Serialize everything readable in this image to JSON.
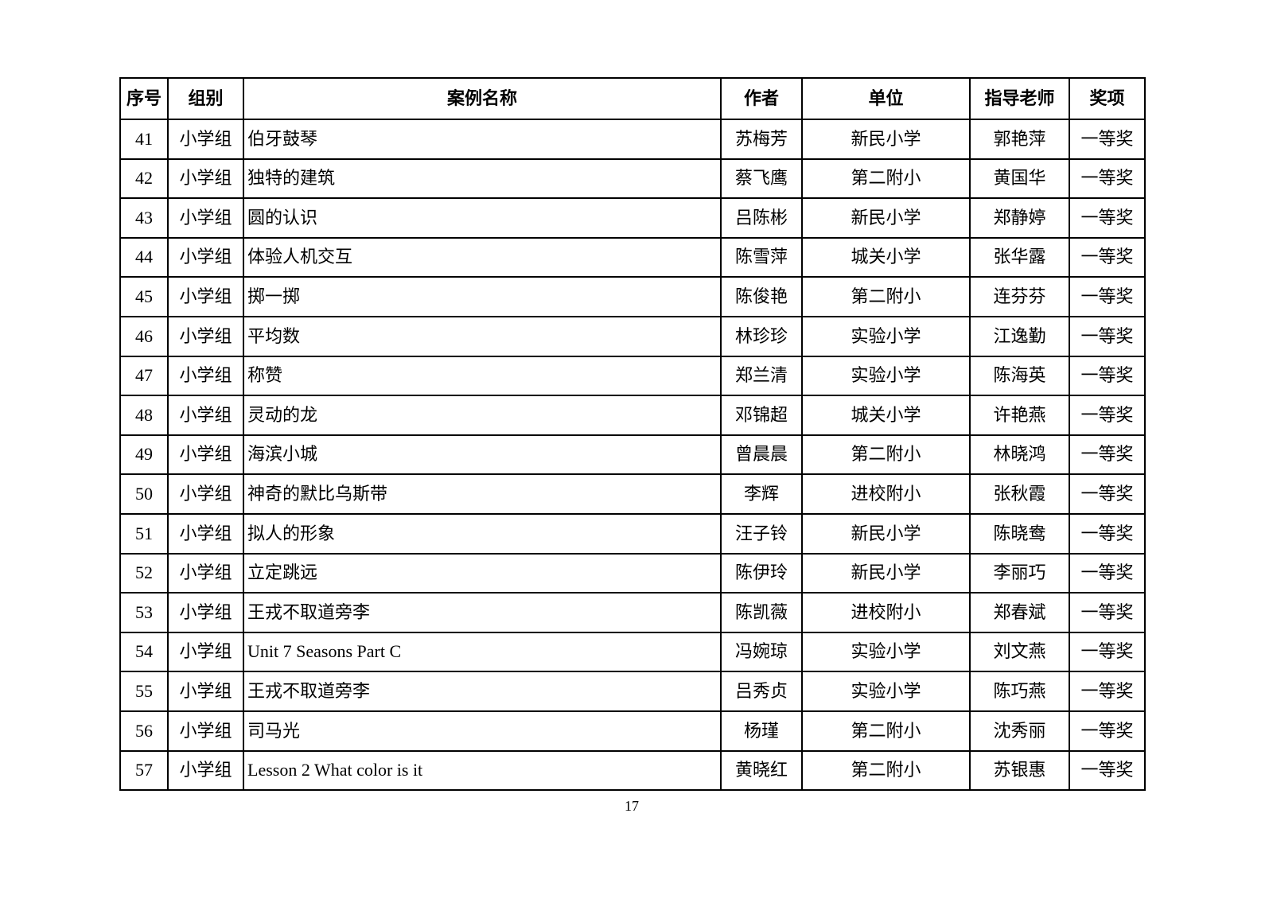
{
  "page": {
    "number": "17"
  },
  "table": {
    "headers": [
      "序号",
      "组别",
      "案例名称",
      "作者",
      "单位",
      "指导老师",
      "奖项"
    ],
    "column_keys": [
      "index",
      "group",
      "case-name",
      "author",
      "unit",
      "teacher",
      "award"
    ],
    "rows": [
      [
        "41",
        "小学组",
        "伯牙鼓琴",
        "苏梅芳",
        "新民小学",
        "郭艳萍",
        "一等奖"
      ],
      [
        "42",
        "小学组",
        "独特的建筑",
        "蔡飞鹰",
        "第二附小",
        "黄国华",
        "一等奖"
      ],
      [
        "43",
        "小学组",
        "圆的认识",
        "吕陈彬",
        "新民小学",
        "郑静婷",
        "一等奖"
      ],
      [
        "44",
        "小学组",
        "体验人机交互",
        "陈雪萍",
        "城关小学",
        "张华露",
        "一等奖"
      ],
      [
        "45",
        "小学组",
        "掷一掷",
        "陈俊艳",
        "第二附小",
        "连芬芬",
        "一等奖"
      ],
      [
        "46",
        "小学组",
        "平均数",
        "林珍珍",
        "实验小学",
        "江逸勤",
        "一等奖"
      ],
      [
        "47",
        "小学组",
        "称赞",
        "郑兰清",
        "实验小学",
        "陈海英",
        "一等奖"
      ],
      [
        "48",
        "小学组",
        "灵动的龙",
        "邓锦超",
        "城关小学",
        "许艳燕",
        "一等奖"
      ],
      [
        "49",
        "小学组",
        "海滨小城",
        "曾晨晨",
        "第二附小",
        "林晓鸿",
        "一等奖"
      ],
      [
        "50",
        "小学组",
        "神奇的默比乌斯带",
        "李辉",
        "进校附小",
        "张秋霞",
        "一等奖"
      ],
      [
        "51",
        "小学组",
        "拟人的形象",
        "汪子铃",
        "新民小学",
        "陈晓鸯",
        "一等奖"
      ],
      [
        "52",
        "小学组",
        "立定跳远",
        "陈伊玲",
        "新民小学",
        "李丽巧",
        "一等奖"
      ],
      [
        "53",
        "小学组",
        "王戎不取道旁李",
        "陈凯薇",
        "进校附小",
        "郑春斌",
        "一等奖"
      ],
      [
        "54",
        "小学组",
        "Unit 7 Seasons Part C",
        "冯婉琼",
        "实验小学",
        "刘文燕",
        "一等奖"
      ],
      [
        "55",
        "小学组",
        "王戎不取道旁李",
        "吕秀贞",
        "实验小学",
        "陈巧燕",
        "一等奖"
      ],
      [
        "56",
        "小学组",
        "司马光",
        "杨瑾",
        "第二附小",
        "沈秀丽",
        "一等奖"
      ],
      [
        "57",
        "小学组",
        "Lesson 2 What color is it",
        "黄晓红",
        "第二附小",
        "苏银惠",
        "一等奖"
      ]
    ]
  }
}
